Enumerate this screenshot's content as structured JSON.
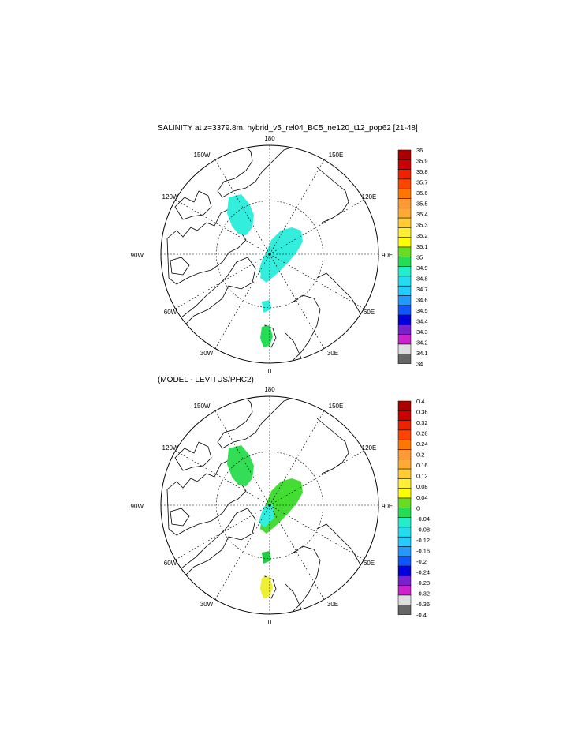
{
  "panels": [
    {
      "title": "SALINITY at z=3379.8m, hybrid_v5_rel04_BC5_ne120_t12_pop62 [21-48]",
      "colorbar_labels": [
        "36",
        "35.9",
        "35.8",
        "35.7",
        "35.6",
        "35.5",
        "35.4",
        "35.3",
        "35.2",
        "35.1",
        "35",
        "34.9",
        "34.8",
        "34.7",
        "34.6",
        "34.5",
        "34.4",
        "34.3",
        "34.2",
        "34.1",
        "34"
      ],
      "data_color_notes": {
        "main_blobs": "#33eedd",
        "svalbard_blob": "#22dd55"
      }
    },
    {
      "title": "(MODEL - LEVITUS/PHC2)",
      "colorbar_labels": [
        "0.4",
        "0.36",
        "0.32",
        "0.28",
        "0.24",
        "0.2",
        "0.16",
        "0.12",
        "0.08",
        "0.04",
        "0",
        "-0.04",
        "-0.08",
        "-0.12",
        "-0.16",
        "-0.2",
        "-0.24",
        "-0.28",
        "-0.32",
        "-0.36",
        "-0.4"
      ],
      "data_color_notes": {
        "main_blobs": "#33ee33",
        "svalbard_blob": "#eeee33"
      }
    }
  ],
  "map_labels": {
    "top": "180",
    "bottom": "0",
    "left": "90W",
    "right": "90E",
    "upper_left_1": "150W",
    "upper_left_2": "120W",
    "lower_left_1": "60W",
    "lower_left_2": "30W",
    "upper_right_1": "150E",
    "upper_right_2": "120E",
    "lower_right_1": "60E",
    "lower_right_2": "30E"
  },
  "colorbar_colors": [
    "#aa0000",
    "#cc0000",
    "#ee2200",
    "#ff4400",
    "#ff7700",
    "#ff9933",
    "#ffaa33",
    "#ffcc33",
    "#ffee33",
    "#ffff00",
    "#66dd22",
    "#22dd55",
    "#22eecc",
    "#22ddee",
    "#22ccff",
    "#2299ff",
    "#1155ff",
    "#0000dd",
    "#7722cc",
    "#cc22cc",
    "#dddddd",
    "#666666"
  ]
}
